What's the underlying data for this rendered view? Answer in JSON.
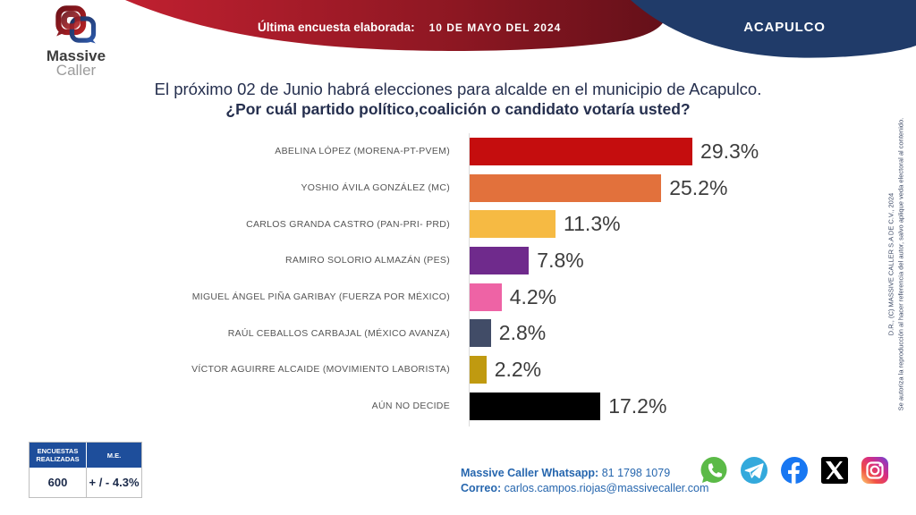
{
  "header": {
    "banner_label": "Última encuesta elaborada:",
    "banner_date": "10 DE MAYO DEL 2024",
    "region": "ACAPULCO"
  },
  "logo": {
    "line1": "Massive",
    "line2": "Caller"
  },
  "title": {
    "line1": "El próximo 02 de Junio habrá elecciones para alcalde en el municipio de Acapulco.",
    "line2": "¿Por cuál partido político,coalición  o candidato votaría usted?"
  },
  "chart_data": {
    "type": "bar",
    "orientation": "horizontal",
    "title": "¿Por cuál partido político, coalición o candidato votaría usted?",
    "categories": [
      "ABELINA LÓPEZ  (MORENA-PT-PVEM)",
      "YOSHIO ÁVILA GONZÁLEZ (MC)",
      "CARLOS GRANDA CASTRO (PAN-PRI- PRD)",
      "RAMIRO SOLORIO ALMAZÁN (PES)",
      "MIGUEL ÁNGEL PIÑA GARIBAY (FUERZA POR MÉXICO)",
      "RAÚL CEBALLOS CARBAJAL (MÉXICO AVANZA)",
      "VÍCTOR AGUIRRE ALCAIDE (MOVIMIENTO LABORISTA)",
      "AÚN NO DECIDE"
    ],
    "values": [
      29.3,
      25.2,
      11.3,
      7.8,
      4.2,
      2.8,
      2.2,
      17.2
    ],
    "value_labels": [
      "29.3%",
      "25.2%",
      "11.3%",
      "7.8%",
      "4.2%",
      "2.8%",
      "2.2%",
      "17.2%"
    ],
    "colors": [
      "#C50D0E",
      "#E2713C",
      "#F6BA43",
      "#6F2A8C",
      "#EE63A5",
      "#414C67",
      "#C09A10",
      "#000000"
    ],
    "xlim": [
      0,
      30
    ],
    "grid": false,
    "legend": "none"
  },
  "stats_table": {
    "header_col1": "ENCUESTAS REALIZADAS",
    "header_col2": "M.E.",
    "value_col1": "600",
    "value_col2": "+ / - 4.3%"
  },
  "contact": {
    "whatsapp_label": "Massive Caller Whatsapp:",
    "whatsapp_number": " 81 1798 1079",
    "email_label": "Correo:",
    "email": " carlos.campos.riojas@massivecaller.com"
  },
  "copyright": {
    "line1": "D.R., (C) MASSIVE CALLER S.A DE C.V., 2024",
    "line2": "Se autoriza la reproducción al hacer referencia del autor, salvo aplique veda electoral al contenido."
  },
  "colors": {
    "ribbon_red_start": "#C02030",
    "ribbon_red_end": "#641019",
    "dome_navy": "#203B69",
    "table_header_blue": "#1E4E9B",
    "contact_blue": "#2666AE",
    "whatsapp_green": "#5BBA47",
    "telegram_blue": "#33A9DC",
    "facebook_blue": "#1877F2",
    "x_black": "#000000"
  }
}
